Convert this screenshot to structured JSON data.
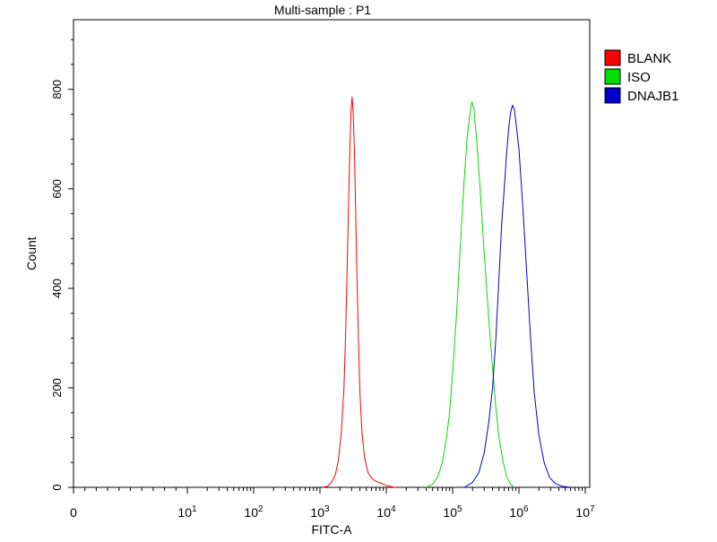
{
  "chart_data": {
    "type": "line",
    "title": "Multi-sample : P1",
    "xlabel": "FITC-A",
    "ylabel": "Count",
    "x_scale": "biexponential-log",
    "xlim": [
      0,
      10000000
    ],
    "ylim": [
      0,
      940
    ],
    "grid": false,
    "legend_position": "top-right",
    "x_ticks": [
      {
        "value": 0,
        "label": "0"
      },
      {
        "value": 10,
        "base": "10",
        "exp": "1"
      },
      {
        "value": 100,
        "base": "10",
        "exp": "2"
      },
      {
        "value": 1000,
        "base": "10",
        "exp": "3"
      },
      {
        "value": 10000,
        "base": "10",
        "exp": "4"
      },
      {
        "value": 100000,
        "base": "10",
        "exp": "5"
      },
      {
        "value": 1000000,
        "base": "10",
        "exp": "6"
      },
      {
        "value": 10000000,
        "base": "10",
        "exp": "7"
      }
    ],
    "y_ticks": [
      0,
      200,
      400,
      600,
      800
    ],
    "series": [
      {
        "name": "BLANK",
        "color": "#ff0000",
        "points": [
          [
            1100,
            0
          ],
          [
            1300,
            2
          ],
          [
            1500,
            10
          ],
          [
            1700,
            25
          ],
          [
            1900,
            55
          ],
          [
            2100,
            110
          ],
          [
            2300,
            200
          ],
          [
            2450,
            320
          ],
          [
            2600,
            470
          ],
          [
            2750,
            620
          ],
          [
            2850,
            700
          ],
          [
            2950,
            760
          ],
          [
            3050,
            785
          ],
          [
            3150,
            760
          ],
          [
            3300,
            680
          ],
          [
            3450,
            560
          ],
          [
            3600,
            430
          ],
          [
            3800,
            300
          ],
          [
            4000,
            190
          ],
          [
            4300,
            110
          ],
          [
            4700,
            60
          ],
          [
            5300,
            30
          ],
          [
            6000,
            18
          ],
          [
            7000,
            12
          ],
          [
            8500,
            8
          ],
          [
            10000,
            4
          ],
          [
            12000,
            1
          ],
          [
            14000,
            0
          ]
        ]
      },
      {
        "name": "ISO",
        "color": "#00dd00",
        "points": [
          [
            40000,
            0
          ],
          [
            50000,
            6
          ],
          [
            60000,
            22
          ],
          [
            70000,
            50
          ],
          [
            80000,
            95
          ],
          [
            90000,
            150
          ],
          [
            100000,
            230
          ],
          [
            115000,
            350
          ],
          [
            130000,
            480
          ],
          [
            150000,
            620
          ],
          [
            165000,
            700
          ],
          [
            180000,
            745
          ],
          [
            195000,
            775
          ],
          [
            210000,
            760
          ],
          [
            230000,
            700
          ],
          [
            260000,
            600
          ],
          [
            300000,
            470
          ],
          [
            350000,
            340
          ],
          [
            400000,
            240
          ],
          [
            450000,
            160
          ],
          [
            500000,
            100
          ],
          [
            580000,
            50
          ],
          [
            650000,
            22
          ],
          [
            750000,
            6
          ],
          [
            850000,
            0
          ]
        ]
      },
      {
        "name": "DNAJB1",
        "color": "#0000cc",
        "points": [
          [
            150000,
            0
          ],
          [
            200000,
            10
          ],
          [
            250000,
            30
          ],
          [
            300000,
            70
          ],
          [
            350000,
            130
          ],
          [
            400000,
            200
          ],
          [
            450000,
            300
          ],
          [
            500000,
            420
          ],
          [
            550000,
            530
          ],
          [
            600000,
            600
          ],
          [
            650000,
            670
          ],
          [
            700000,
            720
          ],
          [
            750000,
            755
          ],
          [
            800000,
            768
          ],
          [
            850000,
            760
          ],
          [
            900000,
            735
          ],
          [
            1000000,
            680
          ],
          [
            1150000,
            560
          ],
          [
            1300000,
            440
          ],
          [
            1500000,
            300
          ],
          [
            1700000,
            190
          ],
          [
            2000000,
            105
          ],
          [
            2400000,
            50
          ],
          [
            2900000,
            20
          ],
          [
            3500000,
            8
          ],
          [
            4500000,
            2
          ],
          [
            6000000,
            0
          ]
        ]
      }
    ]
  }
}
